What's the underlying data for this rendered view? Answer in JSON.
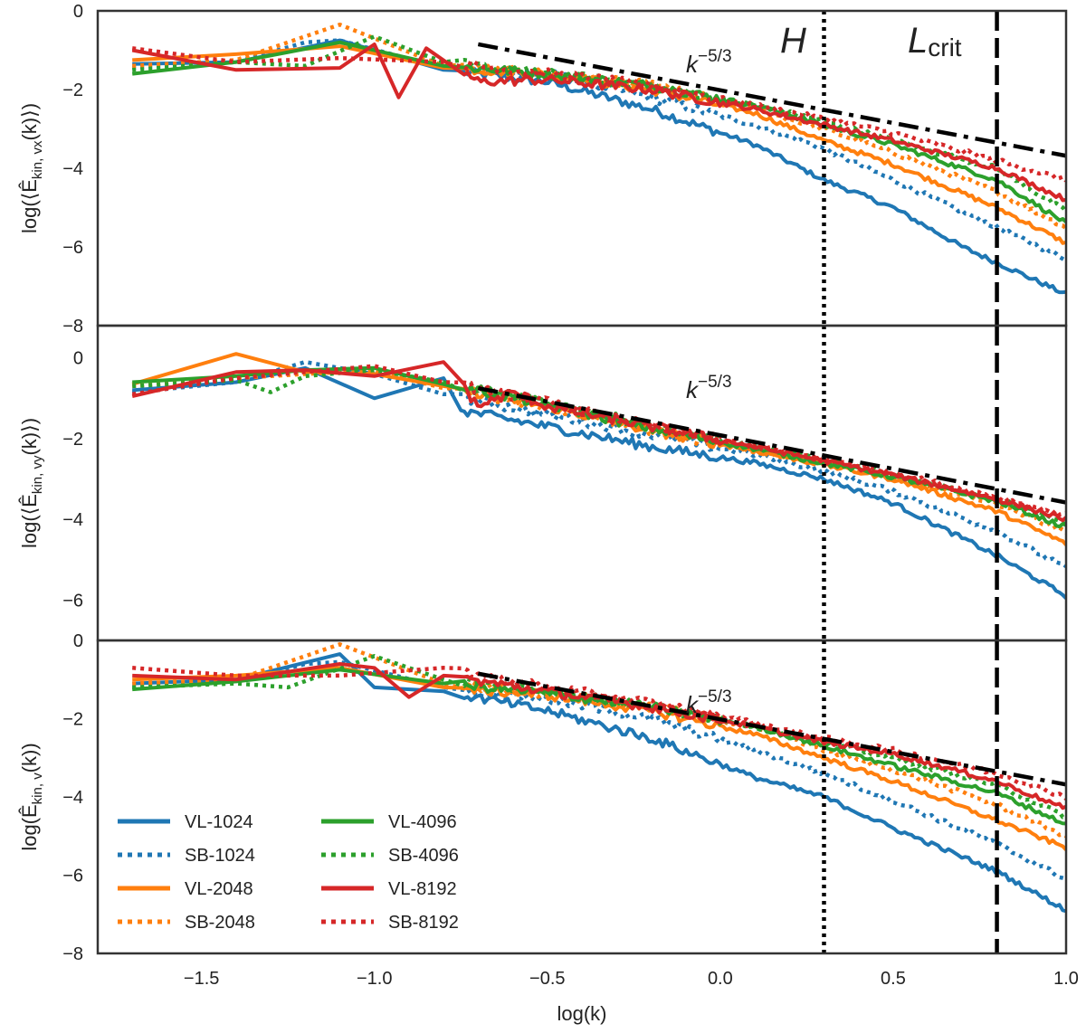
{
  "chart_data": {
    "type": "line",
    "xlabel": "log(k)",
    "xlim": [
      -1.8,
      1.0
    ],
    "xticks": [
      -1.5,
      -1.0,
      -0.5,
      0.0,
      0.5,
      1.0
    ],
    "xtick_labels": [
      "−1.5",
      "−1.0",
      "−0.5",
      "0.0",
      "0.5",
      "1.0"
    ],
    "vlines": [
      {
        "name": "H",
        "x": 0.3,
        "style": "dotted"
      },
      {
        "name": "L_crit",
        "x": 0.8,
        "style": "dashed"
      }
    ],
    "vline_labels": {
      "H": "H",
      "L_main": "L",
      "L_sub": "crit"
    },
    "reference_slope": {
      "label_base": "k",
      "label_exp": "−5/3",
      "slope": -1.6667,
      "x_range": [
        -0.7,
        1.0
      ]
    },
    "legend": {
      "placement": "lower-left",
      "entries": [
        {
          "label": "VL-1024",
          "color": "#1f77b4",
          "style": "solid"
        },
        {
          "label": "SB-1024",
          "color": "#1f77b4",
          "style": "dotted"
        },
        {
          "label": "VL-2048",
          "color": "#ff7f0e",
          "style": "solid"
        },
        {
          "label": "SB-2048",
          "color": "#ff7f0e",
          "style": "dotted"
        },
        {
          "label": "VL-4096",
          "color": "#2ca02c",
          "style": "solid"
        },
        {
          "label": "SB-4096",
          "color": "#2ca02c",
          "style": "dotted"
        },
        {
          "label": "VL-8192",
          "color": "#d62728",
          "style": "solid"
        },
        {
          "label": "SB-8192",
          "color": "#d62728",
          "style": "dotted"
        }
      ]
    },
    "panels": [
      {
        "ylabel_prefix": "log(⟨Ê",
        "ylabel_sub": "kin, vx",
        "ylabel_suffix": "(k)⟩)",
        "ylim": [
          -8,
          0
        ],
        "yticks": [
          0,
          -2,
          -4,
          -6,
          -8
        ],
        "ytick_labels": [
          "0",
          "−2",
          "−4",
          "−6",
          "−8"
        ],
        "ref_y_at_start": -0.85,
        "ref_label": "k^-5/3",
        "series": [
          {
            "name": "VL-1024",
            "x": [
              -1.7,
              -1.4,
              -1.1,
              -0.8,
              -0.5,
              -0.2,
              0.1,
              0.3,
              0.5,
              0.7,
              0.8,
              1.0
            ],
            "y": [
              -1.35,
              -1.3,
              -0.75,
              -1.5,
              -1.8,
              -2.5,
              -3.4,
              -4.3,
              -5.0,
              -6.0,
              -6.4,
              -7.2
            ]
          },
          {
            "name": "SB-1024",
            "x": [
              -1.7,
              -1.4,
              -1.2,
              -1.1,
              -0.8,
              -0.5,
              -0.2,
              0.1,
              0.3,
              0.5,
              0.8,
              1.0
            ],
            "y": [
              -1.45,
              -1.3,
              -0.8,
              -0.75,
              -1.45,
              -1.6,
              -2.2,
              -2.9,
              -3.5,
              -4.3,
              -5.5,
              -6.3
            ]
          },
          {
            "name": "VL-2048",
            "x": [
              -1.7,
              -1.4,
              -1.1,
              -0.8,
              -0.5,
              -0.2,
              0.1,
              0.3,
              0.5,
              0.8,
              1.0
            ],
            "y": [
              -1.25,
              -1.1,
              -0.9,
              -1.45,
              -1.6,
              -2.0,
              -2.6,
              -3.3,
              -3.9,
              -5.0,
              -5.9
            ]
          },
          {
            "name": "SB-2048",
            "x": [
              -1.7,
              -1.4,
              -1.1,
              -0.8,
              -0.5,
              -0.2,
              0.1,
              0.3,
              0.5,
              0.8,
              1.0
            ],
            "y": [
              -1.4,
              -1.25,
              -0.35,
              -1.4,
              -1.6,
              -1.9,
              -2.5,
              -3.0,
              -3.6,
              -4.6,
              -5.5
            ]
          },
          {
            "name": "VL-4096",
            "x": [
              -1.7,
              -1.4,
              -1.1,
              -0.8,
              -0.5,
              -0.2,
              0.1,
              0.3,
              0.5,
              0.8,
              1.0
            ],
            "y": [
              -1.6,
              -1.3,
              -0.8,
              -1.4,
              -1.6,
              -1.9,
              -2.4,
              -2.9,
              -3.4,
              -4.3,
              -5.4
            ]
          },
          {
            "name": "SB-4096",
            "x": [
              -1.7,
              -1.4,
              -1.2,
              -1.0,
              -0.8,
              -0.5,
              -0.2,
              0.1,
              0.3,
              0.5,
              0.8,
              1.0
            ],
            "y": [
              -1.5,
              -1.3,
              -1.4,
              -0.65,
              -1.3,
              -1.6,
              -1.9,
              -2.4,
              -2.8,
              -3.3,
              -4.0,
              -5.1
            ]
          },
          {
            "name": "VL-8192",
            "x": [
              -1.7,
              -1.4,
              -1.1,
              -1.0,
              -0.93,
              -0.85,
              -0.7,
              -0.5,
              -0.2,
              0.1,
              0.3,
              0.5,
              0.8,
              1.0
            ],
            "y": [
              -1.0,
              -1.5,
              -1.45,
              -0.85,
              -2.2,
              -0.95,
              -1.8,
              -1.75,
              -2.0,
              -2.5,
              -2.9,
              -3.3,
              -4.0,
              -4.8
            ]
          },
          {
            "name": "SB-8192",
            "x": [
              -1.7,
              -1.4,
              -1.1,
              -0.8,
              -0.5,
              -0.2,
              0.1,
              0.3,
              0.5,
              0.8,
              1.0
            ],
            "y": [
              -0.95,
              -1.3,
              -1.2,
              -1.3,
              -1.6,
              -1.9,
              -2.4,
              -2.75,
              -3.1,
              -3.8,
              -4.3
            ]
          }
        ]
      },
      {
        "ylabel_prefix": "log(⟨Ê",
        "ylabel_sub": "kin, vy",
        "ylabel_suffix": "(k)⟩)",
        "ylim": [
          -7.0,
          0.8
        ],
        "yticks": [
          0,
          -2,
          -4,
          -6
        ],
        "ytick_labels": [
          "0",
          "−2",
          "−4",
          "−6"
        ],
        "ref_y_at_start": -0.75,
        "ref_label": "k^-5/3",
        "series": [
          {
            "name": "VL-1024",
            "x": [
              -1.7,
              -1.4,
              -1.2,
              -1.0,
              -0.8,
              -0.75,
              -0.5,
              -0.2,
              0.1,
              0.3,
              0.5,
              0.8,
              1.0
            ],
            "y": [
              -0.8,
              -0.6,
              -0.25,
              -1.0,
              -0.5,
              -1.3,
              -1.7,
              -2.2,
              -2.6,
              -3.0,
              -3.6,
              -4.9,
              -5.9
            ]
          },
          {
            "name": "SB-1024",
            "x": [
              -1.7,
              -1.4,
              -1.2,
              -1.0,
              -0.8,
              -0.5,
              -0.2,
              0.1,
              0.3,
              0.5,
              0.8,
              1.0
            ],
            "y": [
              -0.85,
              -0.6,
              -0.1,
              -0.4,
              -0.9,
              -1.4,
              -1.9,
              -2.4,
              -2.8,
              -3.3,
              -4.3,
              -5.2
            ]
          },
          {
            "name": "VL-2048",
            "x": [
              -1.7,
              -1.4,
              -1.2,
              -1.0,
              -0.8,
              -0.5,
              -0.2,
              0.1,
              0.3,
              0.5,
              0.8,
              1.0
            ],
            "y": [
              -0.65,
              0.1,
              -0.35,
              -0.4,
              -0.7,
              -1.2,
              -1.8,
              -2.3,
              -2.65,
              -3.0,
              -3.8,
              -4.6
            ]
          },
          {
            "name": "SB-2048",
            "x": [
              -1.7,
              -1.4,
              -1.2,
              -1.0,
              -0.8,
              -0.5,
              -0.2,
              0.1,
              0.3,
              0.5,
              0.8,
              1.0
            ],
            "y": [
              -0.7,
              -0.5,
              -0.4,
              -0.3,
              -0.75,
              -1.2,
              -1.8,
              -2.3,
              -2.6,
              -3.0,
              -3.6,
              -4.3
            ]
          },
          {
            "name": "VL-4096",
            "x": [
              -1.7,
              -1.4,
              -1.2,
              -1.0,
              -0.8,
              -0.5,
              -0.2,
              0.1,
              0.3,
              0.5,
              0.8,
              1.0
            ],
            "y": [
              -0.6,
              -0.45,
              -0.3,
              -0.25,
              -0.65,
              -1.15,
              -1.75,
              -2.25,
              -2.6,
              -2.95,
              -3.55,
              -4.2
            ]
          },
          {
            "name": "SB-4096",
            "x": [
              -1.7,
              -1.4,
              -1.3,
              -1.2,
              -1.0,
              -0.8,
              -0.5,
              -0.2,
              0.1,
              0.3,
              0.5,
              0.8,
              1.0
            ],
            "y": [
              -0.7,
              -0.55,
              -0.85,
              -0.45,
              -0.3,
              -0.6,
              -1.1,
              -1.7,
              -2.2,
              -2.55,
              -2.9,
              -3.5,
              -4.1
            ]
          },
          {
            "name": "VL-8192",
            "x": [
              -1.7,
              -1.4,
              -1.2,
              -1.0,
              -0.8,
              -0.7,
              -0.6,
              -0.5,
              -0.2,
              0.1,
              0.3,
              0.5,
              0.8,
              1.0
            ],
            "y": [
              -0.95,
              -0.35,
              -0.3,
              -0.45,
              -0.1,
              -1.2,
              -0.85,
              -1.2,
              -1.7,
              -2.2,
              -2.55,
              -2.9,
              -3.5,
              -4.0
            ]
          },
          {
            "name": "SB-8192",
            "x": [
              -1.7,
              -1.4,
              -1.2,
              -1.0,
              -0.8,
              -0.5,
              -0.2,
              0.1,
              0.3,
              0.5,
              0.8,
              1.0
            ],
            "y": [
              -0.9,
              -0.5,
              -0.35,
              -0.2,
              -0.6,
              -1.1,
              -1.7,
              -2.2,
              -2.5,
              -2.85,
              -3.45,
              -3.9
            ]
          }
        ]
      },
      {
        "ylabel_prefix": "log(Ê",
        "ylabel_sub": "kin, v",
        "ylabel_suffix": "(k))",
        "ylim": [
          -8,
          0
        ],
        "yticks": [
          0,
          -2,
          -4,
          -6,
          -8
        ],
        "ytick_labels": [
          "0",
          "−2",
          "−4",
          "−6",
          "−8"
        ],
        "ref_y_at_start": -0.85,
        "ref_label": "k^-5/3",
        "series": [
          {
            "name": "VL-1024",
            "x": [
              -1.7,
              -1.4,
              -1.1,
              -1.0,
              -0.8,
              -0.5,
              -0.2,
              0.1,
              0.3,
              0.5,
              0.8,
              1.0
            ],
            "y": [
              -1.1,
              -1.0,
              -0.35,
              -1.2,
              -1.3,
              -1.8,
              -2.5,
              -3.5,
              -4.0,
              -4.8,
              -5.9,
              -6.9
            ]
          },
          {
            "name": "SB-1024",
            "x": [
              -1.7,
              -1.4,
              -1.2,
              -1.1,
              -0.8,
              -0.5,
              -0.2,
              0.1,
              0.3,
              0.5,
              0.8,
              1.0
            ],
            "y": [
              -1.2,
              -1.05,
              -0.6,
              -0.55,
              -1.2,
              -1.5,
              -2.0,
              -2.8,
              -3.4,
              -4.1,
              -5.2,
              -6.1
            ]
          },
          {
            "name": "VL-2048",
            "x": [
              -1.7,
              -1.4,
              -1.1,
              -0.8,
              -0.5,
              -0.2,
              0.1,
              0.3,
              0.5,
              0.8,
              1.0
            ],
            "y": [
              -1.0,
              -0.9,
              -0.7,
              -1.2,
              -1.4,
              -1.8,
              -2.4,
              -3.0,
              -3.6,
              -4.6,
              -5.3
            ]
          },
          {
            "name": "SB-2048",
            "x": [
              -1.7,
              -1.4,
              -1.1,
              -0.8,
              -0.5,
              -0.2,
              0.1,
              0.3,
              0.5,
              0.8,
              1.0
            ],
            "y": [
              -1.1,
              -1.0,
              -0.1,
              -1.1,
              -1.35,
              -1.7,
              -2.2,
              -2.8,
              -3.3,
              -4.2,
              -5.0
            ]
          },
          {
            "name": "VL-4096",
            "x": [
              -1.7,
              -1.4,
              -1.1,
              -0.8,
              -0.5,
              -0.2,
              0.1,
              0.3,
              0.5,
              0.8,
              1.0
            ],
            "y": [
              -1.25,
              -1.05,
              -0.75,
              -1.1,
              -1.35,
              -1.7,
              -2.2,
              -2.7,
              -3.2,
              -3.9,
              -4.7
            ]
          },
          {
            "name": "SB-4096",
            "x": [
              -1.7,
              -1.4,
              -1.25,
              -1.0,
              -0.8,
              -0.5,
              -0.2,
              0.1,
              0.3,
              0.5,
              0.8,
              1.0
            ],
            "y": [
              -1.2,
              -1.1,
              -1.2,
              -0.4,
              -1.0,
              -1.3,
              -1.7,
              -2.2,
              -2.6,
              -3.0,
              -3.7,
              -4.5
            ]
          },
          {
            "name": "VL-8192",
            "x": [
              -1.7,
              -1.4,
              -1.1,
              -1.0,
              -0.9,
              -0.8,
              -0.5,
              -0.2,
              0.1,
              0.3,
              0.5,
              0.8,
              1.0
            ],
            "y": [
              -0.9,
              -1.0,
              -0.6,
              -0.7,
              -1.45,
              -0.9,
              -1.3,
              -1.7,
              -2.2,
              -2.6,
              -2.9,
              -3.6,
              -4.3
            ]
          },
          {
            "name": "SB-8192",
            "x": [
              -1.7,
              -1.4,
              -1.1,
              -0.8,
              -0.5,
              -0.2,
              0.1,
              0.3,
              0.5,
              0.8,
              1.0
            ],
            "y": [
              -0.7,
              -0.9,
              -0.9,
              -0.7,
              -1.2,
              -1.6,
              -2.1,
              -2.5,
              -2.8,
              -3.4,
              -4.0
            ]
          }
        ]
      }
    ]
  }
}
